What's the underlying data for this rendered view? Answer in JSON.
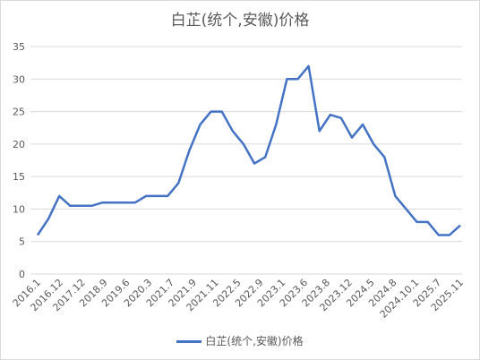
{
  "chart_data": {
    "type": "line",
    "title": "白芷(统个,安徽)价格",
    "xlabel": "",
    "ylabel": "",
    "ylim": [
      0,
      35
    ],
    "yticks": [
      0,
      5,
      10,
      15,
      20,
      25,
      30,
      35
    ],
    "grid": true,
    "legend_position": "bottom",
    "line_color": "#4472c4",
    "x_tick_labels": [
      "2016.1",
      "2016.12",
      "2017.12",
      "2018.9",
      "2019.6",
      "2020.3",
      "2021.7",
      "2021.9",
      "2021.11",
      "2022.5",
      "2022.9",
      "2023.1",
      "2023.6",
      "2023.8",
      "2023.12",
      "2024.5",
      "2024.8",
      "2024.10.1",
      "2025.7",
      "2025.11"
    ],
    "series": [
      {
        "name": "白芷(统个,安徽)价格",
        "values": [
          6,
          8.5,
          12,
          10.5,
          10.5,
          10.5,
          11,
          11,
          11,
          11,
          12,
          12,
          12,
          14,
          19,
          23,
          25,
          25,
          22,
          20,
          17,
          18,
          23,
          30,
          30,
          32,
          22,
          24.5,
          24,
          21,
          23,
          20,
          18,
          12,
          10,
          8,
          8,
          6,
          6,
          7.5
        ]
      }
    ]
  }
}
